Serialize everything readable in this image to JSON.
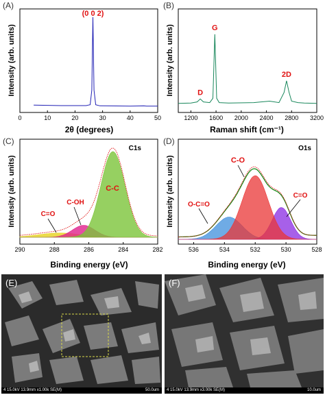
{
  "colors": {
    "xrd_line": "#1f1fb4",
    "raman_line": "#17865a",
    "peak_label": "#e01010",
    "c1s_cc": "#7cc43a",
    "c1s_coh": "#e0208c",
    "c1s_co": "#e6d21e",
    "o1s_co": "#ea3535",
    "o1s_oco": "#3f8fdc",
    "o1s_ceqo": "#8a2be2",
    "envelope": "#1b8a1b",
    "raw_points": "#e01010"
  },
  "chart_data": [
    {
      "panel": "(A)",
      "type": "line",
      "xlabel": "2θ (degrees)",
      "ylabel": "Intensity (arb. units)",
      "xlim": [
        0,
        50
      ],
      "xticks": [
        0,
        10,
        20,
        30,
        40,
        50
      ],
      "annotations": [
        {
          "text": "(0 0 2)",
          "x": 26.5
        }
      ],
      "series": [
        {
          "x": [
            5,
            10,
            15,
            20,
            24,
            25.5,
            26.1,
            26.5,
            26.9,
            27.5,
            29,
            35,
            40,
            45,
            46,
            50
          ],
          "y": [
            0.035,
            0.033,
            0.03,
            0.03,
            0.03,
            0.04,
            0.2,
            1.0,
            0.2,
            0.04,
            0.028,
            0.026,
            0.025,
            0.027,
            0.025,
            0.025
          ]
        }
      ]
    },
    {
      "panel": "(B)",
      "type": "line",
      "xlabel": "Raman shift (cm⁻¹)",
      "ylabel": "Intensity (arb. units)",
      "xlim": [
        1000,
        3200
      ],
      "xticks": [
        1200,
        1600,
        2000,
        2400,
        2800,
        3200
      ],
      "annotations": [
        {
          "text": "D",
          "x": 1350
        },
        {
          "text": "G",
          "x": 1580
        },
        {
          "text": "2D",
          "x": 2720
        }
      ],
      "series": [
        {
          "x": [
            1000,
            1200,
            1300,
            1350,
            1400,
            1500,
            1550,
            1580,
            1610,
            1650,
            1800,
            2200,
            2450,
            2600,
            2680,
            2720,
            2760,
            2800,
            2900,
            3000,
            3200
          ],
          "y": [
            0.05,
            0.055,
            0.07,
            0.11,
            0.07,
            0.06,
            0.12,
            1.0,
            0.12,
            0.06,
            0.055,
            0.06,
            0.08,
            0.06,
            0.2,
            0.36,
            0.2,
            0.08,
            0.06,
            0.055,
            0.05
          ]
        }
      ]
    },
    {
      "panel": "(C)",
      "type": "area",
      "title": "C1s",
      "xlabel": "Binding energy (eV)",
      "ylabel": "Intensity (arb. units)",
      "xlim": [
        290,
        282
      ],
      "xticks": [
        290,
        288,
        286,
        284,
        282
      ],
      "series": [
        {
          "name": "C-C",
          "center": 284.6,
          "height": 1.0,
          "sigma": 0.7
        },
        {
          "name": "C-OH",
          "center": 286.3,
          "height": 0.14,
          "sigma": 0.65
        },
        {
          "name": "C=O",
          "center": 287.7,
          "height": 0.05,
          "sigma": 1.2
        }
      ]
    },
    {
      "panel": "(D)",
      "type": "area",
      "title": "O1s",
      "xlabel": "Binding energy (eV)",
      "ylabel": "Intensity (arb. units)",
      "xlim": [
        537,
        528
      ],
      "xticks": [
        536,
        534,
        532,
        530,
        528
      ],
      "series": [
        {
          "name": "C-O",
          "center": 532.0,
          "height": 0.8,
          "sigma": 0.85
        },
        {
          "name": "O-C=O",
          "center": 533.7,
          "height": 0.28,
          "sigma": 0.85
        },
        {
          "name": "C=O",
          "center": 530.3,
          "height": 0.4,
          "sigma": 0.6
        }
      ]
    }
  ],
  "sem_images": [
    {
      "panel": "(E)",
      "info": "4 15.0kV 13.9mm x1.00k SE(M)",
      "scale": "50.0um"
    },
    {
      "panel": "(F)",
      "info": "4 15.0kV 13.9mm x3.00k SE(M)",
      "scale": "10.0um"
    }
  ]
}
